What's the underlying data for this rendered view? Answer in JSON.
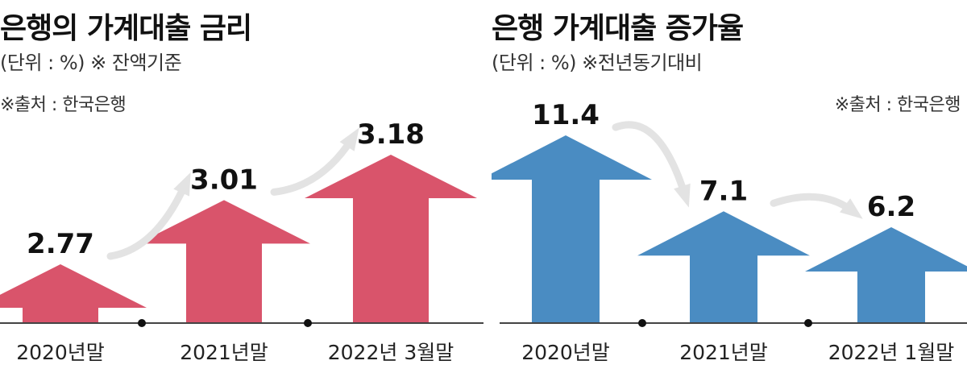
{
  "chart_data": [
    {
      "type": "bar",
      "title": "은행의 가계대출 금리",
      "unit_note": "(단위 : %)  ※ 잔액기준",
      "source": "※출처 : 한국은행",
      "categories": [
        "2020년말",
        "2021년말",
        "2022년 3월말"
      ],
      "values": [
        2.77,
        3.01,
        3.18
      ],
      "value_labels": [
        "2.77",
        "3.01",
        "3.18"
      ],
      "color": "#d9546b"
    },
    {
      "type": "bar",
      "title": "은행 가계대출 증가율",
      "unit_note": "(단위 : %)  ※전년동기대비",
      "source": "※출처 : 한국은행",
      "categories": [
        "2020년말",
        "2021년말",
        "2022년 1월말"
      ],
      "values": [
        11.4,
        7.1,
        6.2
      ],
      "value_labels": [
        "11.4",
        "7.1",
        "6.2"
      ],
      "color": "#4a8cc2"
    }
  ]
}
